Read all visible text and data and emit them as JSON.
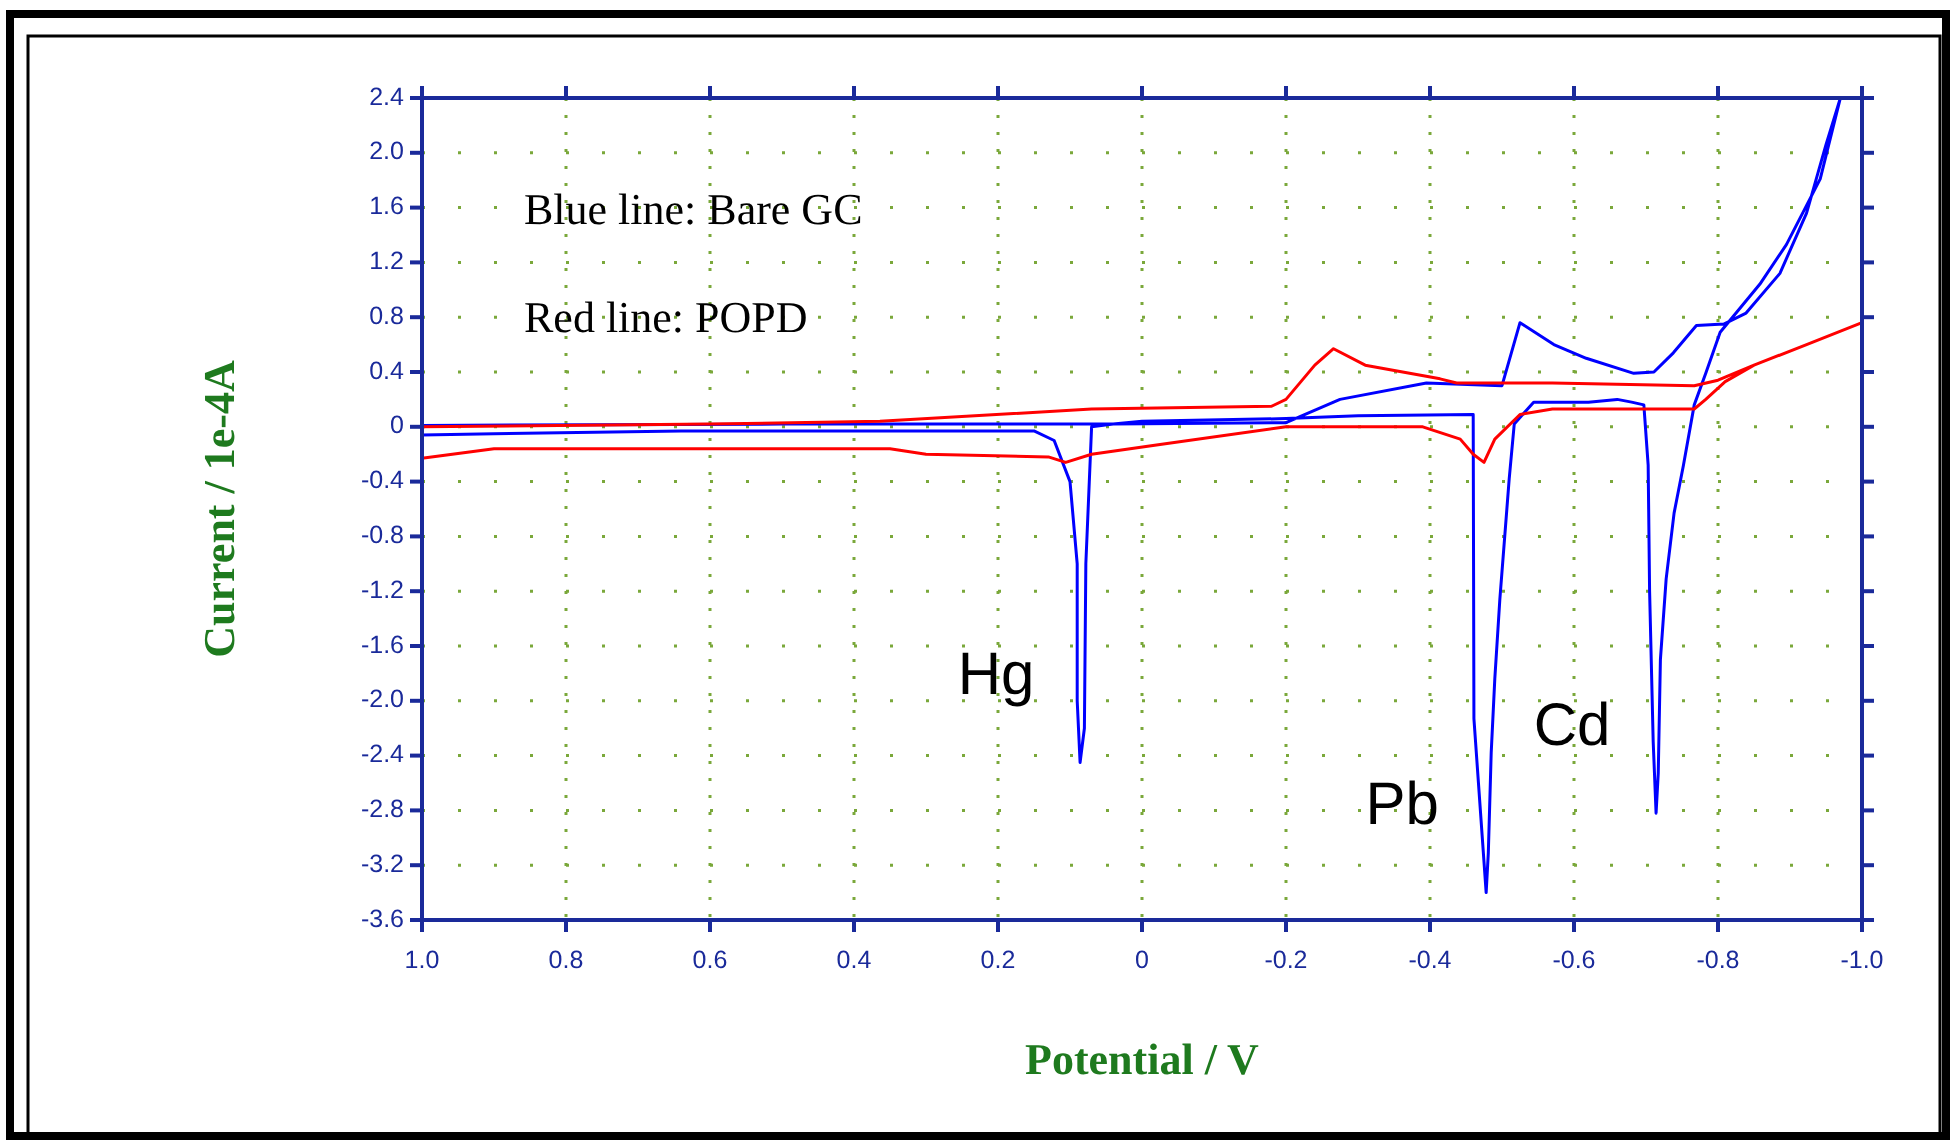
{
  "chart_data": {
    "type": "line",
    "xlabel": "Potential / V",
    "ylabel": "Current / 1e-4A",
    "xlim": [
      1.0,
      -1.0
    ],
    "ylim": [
      -3.6,
      2.4
    ],
    "xticks": [
      {
        "value": 1,
        "label": "1.0"
      },
      0.8,
      0.6,
      0.4,
      0.2,
      0,
      -0.2,
      -0.4,
      -0.6,
      -0.8,
      {
        "value": -1,
        "label": "-1.0"
      }
    ],
    "yticks": [
      2.4,
      {
        "value": 2,
        "label": "2.0"
      },
      1.6,
      1.2,
      0.8,
      0.4,
      0,
      -0.4,
      -0.8,
      -1.2,
      -1.6,
      {
        "value": -2,
        "label": "-2.0"
      },
      -2.4,
      -2.8,
      -3.2,
      -3.6
    ],
    "grid": true,
    "marker": "none",
    "line_style": "solid",
    "series": [
      {
        "color": "#0000ff",
        "x": [
          1.0,
          0.5,
          0.04,
          -0.2,
          -0.275,
          -0.395,
          -0.5,
          -0.525,
          -0.572,
          -0.617,
          -0.683,
          -0.711,
          -0.738,
          -0.77,
          -0.808,
          -0.839,
          -0.886,
          -0.923,
          -0.95,
          -0.97,
          -0.942,
          -0.895,
          -0.858,
          -0.803,
          -0.783,
          -0.767,
          -0.752,
          -0.739,
          -0.728,
          -0.72,
          -0.717,
          -0.714,
          -0.71,
          -0.705,
          -0.703,
          -0.697,
          -0.68,
          -0.66,
          -0.62,
          -0.544,
          -0.517,
          -0.51,
          -0.497,
          -0.49,
          -0.485,
          -0.481,
          -0.478,
          -0.461,
          -0.46,
          -0.3,
          -0.2,
          0.0,
          0.04,
          0.07,
          0.078,
          0.08,
          0.086,
          0.09,
          0.09,
          0.1,
          0.122,
          0.15,
          0.64,
          0.9,
          1.0
        ],
        "values": [
          0.01,
          0.02,
          0.02,
          0.03,
          0.2,
          0.32,
          0.3,
          0.76,
          0.6,
          0.5,
          0.39,
          0.4,
          0.54,
          0.74,
          0.75,
          0.83,
          1.12,
          1.56,
          2.06,
          2.4,
          1.81,
          1.33,
          1.04,
          0.69,
          0.39,
          0.16,
          -0.28,
          -0.63,
          -1.11,
          -1.7,
          -2.53,
          -2.82,
          -2.3,
          -1.2,
          -0.28,
          0.16,
          0.18,
          0.2,
          0.18,
          0.18,
          0.02,
          -0.38,
          -1.26,
          -1.84,
          -2.38,
          -3.11,
          -3.4,
          -2.13,
          0.09,
          0.08,
          0.06,
          0.04,
          0.02,
          0.0,
          -1.0,
          -2.2,
          -2.45,
          -2.0,
          -1.0,
          -0.4,
          -0.1,
          -0.03,
          -0.03,
          -0.05,
          -0.06
        ]
      },
      {
        "color": "#ff0000",
        "x": [
          1.0,
          0.9,
          0.35,
          0.3,
          0.13,
          0.106,
          0.07,
          -0.025,
          -0.2,
          -0.39,
          -0.442,
          -0.46,
          -0.475,
          -0.49,
          -0.525,
          -0.57,
          -0.767,
          -0.783,
          -0.81,
          -0.85,
          -0.923,
          -1.0,
          -0.923,
          -0.85,
          -0.8,
          -0.767,
          -0.57,
          -0.437,
          -0.414,
          -0.31,
          -0.266,
          -0.24,
          -0.2,
          -0.18,
          0.07,
          0.364,
          0.6,
          1.0
        ],
        "values": [
          -0.23,
          -0.16,
          -0.16,
          -0.2,
          -0.22,
          -0.26,
          -0.2,
          -0.13,
          0.0,
          0.0,
          -0.09,
          -0.2,
          -0.26,
          -0.09,
          0.09,
          0.13,
          0.13,
          0.2,
          0.33,
          0.45,
          0.6,
          0.76,
          0.6,
          0.45,
          0.34,
          0.3,
          0.32,
          0.32,
          0.35,
          0.45,
          0.57,
          0.45,
          0.2,
          0.15,
          0.13,
          0.04,
          0.02,
          0.0
        ]
      }
    ],
    "annotations": [
      "Blue line: Bare GC",
      "Red line: POPD",
      {
        "text": "Hg",
        "x": 0.086,
        "y": -2.45
      },
      {
        "text": "Pb",
        "x": -0.478,
        "y": -3.4
      },
      {
        "text": "Cd",
        "x": -0.714,
        "y": -2.82
      }
    ]
  }
}
